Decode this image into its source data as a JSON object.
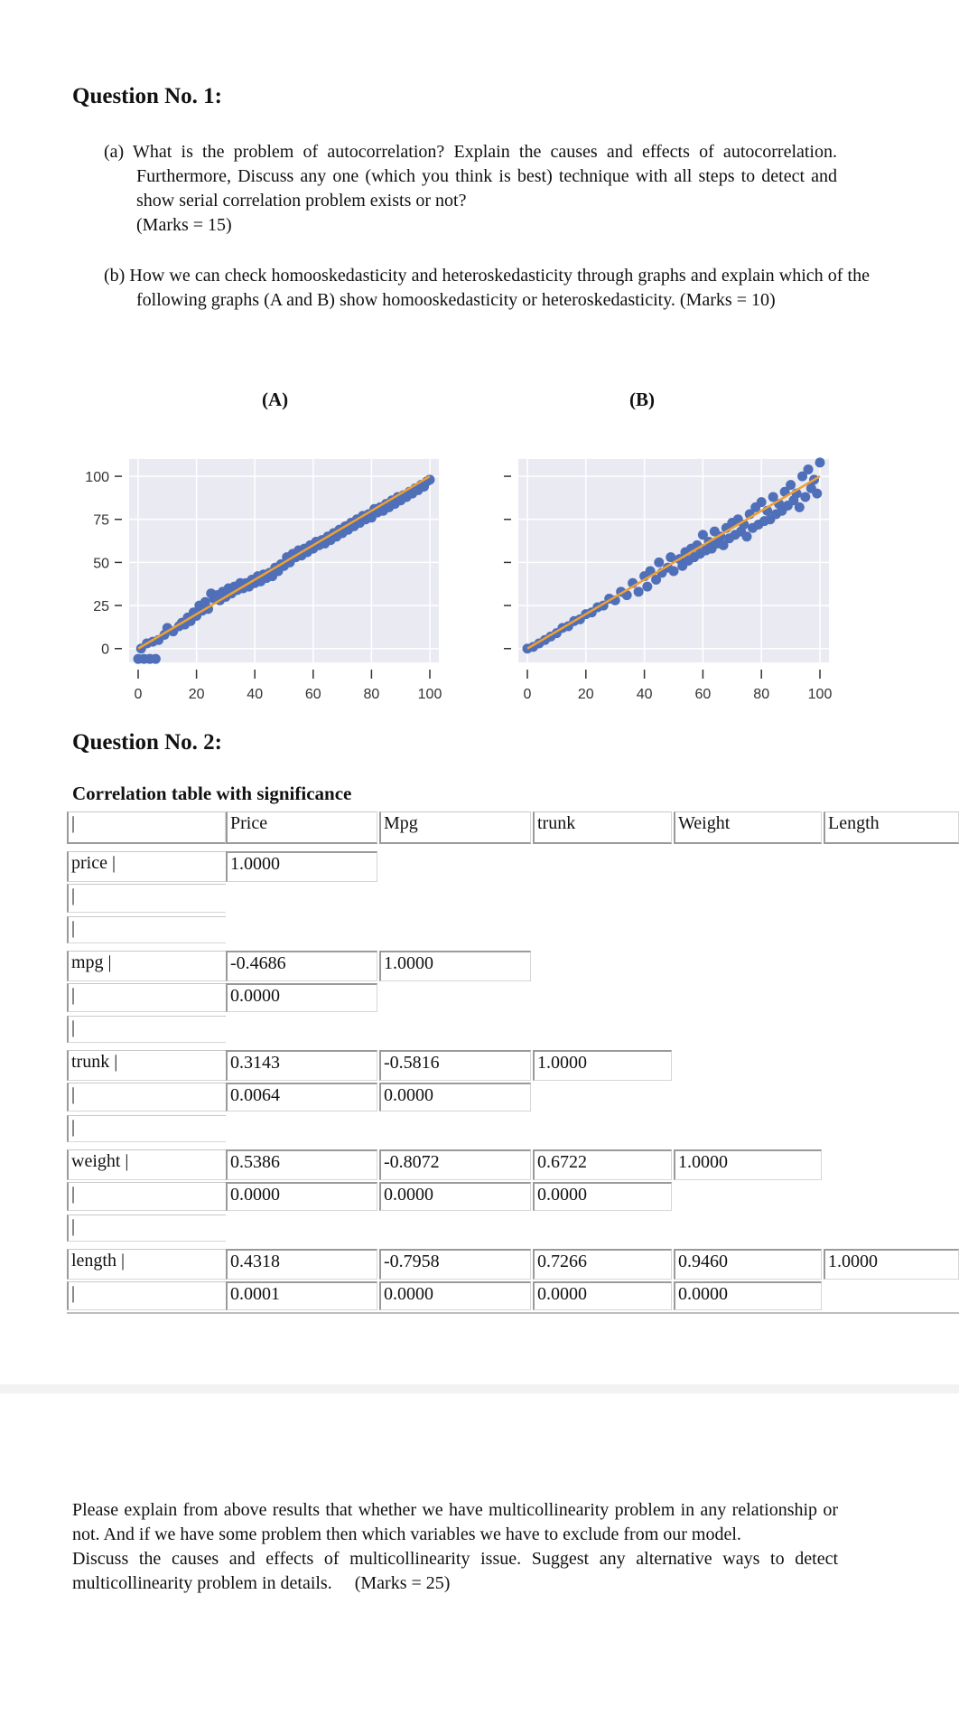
{
  "q1": {
    "title": "Question No. 1:",
    "a": "(a) What is the problem of autocorrelation? Explain the causes and effects of autocorrelation. Furthermore, Discuss any one (which you think is best) technique with all steps to detect and show serial correlation problem exists or not?",
    "a_marks": "(Marks = 15)",
    "b": "(b) How we can check homooskedasticity and heteroskedasticity through graphs and explain which of the following graphs (A and B) show homooskedasticity or heteroskedasticity. (Marks = 10)"
  },
  "chart_data": [
    {
      "type": "scatter",
      "label": "(A)",
      "xticks": [
        "0",
        "20",
        "40",
        "60",
        "80",
        "100"
      ],
      "yticks": [
        "100",
        "75",
        "50",
        "25",
        "0"
      ],
      "xlim": [
        0,
        100
      ],
      "ylim": [
        -8,
        110
      ],
      "fit_line": [
        [
          0,
          0
        ],
        [
          100,
          100
        ]
      ],
      "colors": {
        "points": "#4f6fb8",
        "line": "#f0a030",
        "background": "#eaeaf2"
      },
      "points": [
        [
          0,
          -6
        ],
        [
          2,
          -6
        ],
        [
          4,
          -6
        ],
        [
          6,
          -6
        ],
        [
          1,
          0
        ],
        [
          3,
          3
        ],
        [
          5,
          4
        ],
        [
          7,
          5
        ],
        [
          9,
          8
        ],
        [
          10,
          12
        ],
        [
          12,
          10
        ],
        [
          14,
          13
        ],
        [
          15,
          15
        ],
        [
          16,
          14
        ],
        [
          17,
          18
        ],
        [
          18,
          16
        ],
        [
          19,
          21
        ],
        [
          20,
          19
        ],
        [
          21,
          25
        ],
        [
          22,
          22
        ],
        [
          23,
          27
        ],
        [
          24,
          23
        ],
        [
          25,
          32
        ],
        [
          26,
          29
        ],
        [
          27,
          31
        ],
        [
          28,
          28
        ],
        [
          29,
          33
        ],
        [
          30,
          30
        ],
        [
          31,
          35
        ],
        [
          32,
          32
        ],
        [
          33,
          36
        ],
        [
          34,
          34
        ],
        [
          35,
          38
        ],
        [
          36,
          35
        ],
        [
          37,
          38
        ],
        [
          38,
          36
        ],
        [
          39,
          40
        ],
        [
          40,
          38
        ],
        [
          41,
          42
        ],
        [
          42,
          39
        ],
        [
          43,
          43
        ],
        [
          44,
          41
        ],
        [
          45,
          44
        ],
        [
          46,
          42
        ],
        [
          47,
          47
        ],
        [
          48,
          45
        ],
        [
          49,
          49
        ],
        [
          50,
          48
        ],
        [
          51,
          53
        ],
        [
          52,
          50
        ],
        [
          53,
          55
        ],
        [
          54,
          53
        ],
        [
          55,
          57
        ],
        [
          56,
          54
        ],
        [
          57,
          58
        ],
        [
          58,
          56
        ],
        [
          59,
          60
        ],
        [
          60,
          58
        ],
        [
          61,
          62
        ],
        [
          62,
          60
        ],
        [
          63,
          63
        ],
        [
          64,
          61
        ],
        [
          65,
          65
        ],
        [
          66,
          63
        ],
        [
          67,
          67
        ],
        [
          68,
          65
        ],
        [
          69,
          69
        ],
        [
          70,
          67
        ],
        [
          71,
          71
        ],
        [
          72,
          69
        ],
        [
          73,
          73
        ],
        [
          74,
          71
        ],
        [
          75,
          75
        ],
        [
          76,
          73
        ],
        [
          77,
          77
        ],
        [
          78,
          75
        ],
        [
          79,
          78
        ],
        [
          80,
          76
        ],
        [
          81,
          81
        ],
        [
          82,
          79
        ],
        [
          83,
          82
        ],
        [
          84,
          80
        ],
        [
          85,
          84
        ],
        [
          86,
          82
        ],
        [
          87,
          86
        ],
        [
          88,
          84
        ],
        [
          89,
          88
        ],
        [
          90,
          86
        ],
        [
          91,
          89
        ],
        [
          92,
          88
        ],
        [
          93,
          91
        ],
        [
          94,
          90
        ],
        [
          95,
          93
        ],
        [
          96,
          92
        ],
        [
          97,
          95
        ],
        [
          98,
          94
        ],
        [
          99,
          97
        ],
        [
          100,
          98
        ]
      ]
    },
    {
      "type": "scatter",
      "label": "(B)",
      "xticks": [
        "0",
        "20",
        "40",
        "60",
        "80",
        "100"
      ],
      "yticks": [],
      "xlim": [
        0,
        100
      ],
      "ylim": [
        -8,
        110
      ],
      "fit_line": [
        [
          0,
          0
        ],
        [
          100,
          100
        ]
      ],
      "colors": {
        "points": "#4f6fb8",
        "line": "#f0a030",
        "background": "#eaeaf2"
      },
      "points": [
        [
          0,
          0
        ],
        [
          2,
          1
        ],
        [
          4,
          3
        ],
        [
          6,
          5
        ],
        [
          8,
          7
        ],
        [
          10,
          9
        ],
        [
          12,
          12
        ],
        [
          14,
          13
        ],
        [
          16,
          16
        ],
        [
          18,
          17
        ],
        [
          20,
          20
        ],
        [
          22,
          21
        ],
        [
          24,
          24
        ],
        [
          26,
          25
        ],
        [
          28,
          29
        ],
        [
          30,
          28
        ],
        [
          32,
          33
        ],
        [
          34,
          31
        ],
        [
          36,
          38
        ],
        [
          38,
          33
        ],
        [
          40,
          42
        ],
        [
          41,
          36
        ],
        [
          42,
          45
        ],
        [
          44,
          40
        ],
        [
          45,
          50
        ],
        [
          46,
          44
        ],
        [
          48,
          47
        ],
        [
          49,
          53
        ],
        [
          50,
          45
        ],
        [
          52,
          52
        ],
        [
          53,
          48
        ],
        [
          54,
          56
        ],
        [
          55,
          51
        ],
        [
          56,
          58
        ],
        [
          57,
          53
        ],
        [
          58,
          60
        ],
        [
          59,
          55
        ],
        [
          60,
          66
        ],
        [
          61,
          57
        ],
        [
          62,
          62
        ],
        [
          63,
          58
        ],
        [
          64,
          68
        ],
        [
          65,
          61
        ],
        [
          66,
          65
        ],
        [
          67,
          60
        ],
        [
          68,
          70
        ],
        [
          69,
          64
        ],
        [
          70,
          73
        ],
        [
          71,
          66
        ],
        [
          72,
          75
        ],
        [
          73,
          68
        ],
        [
          74,
          72
        ],
        [
          75,
          65
        ],
        [
          76,
          78
        ],
        [
          77,
          70
        ],
        [
          78,
          82
        ],
        [
          79,
          72
        ],
        [
          80,
          85
        ],
        [
          81,
          74
        ],
        [
          82,
          80
        ],
        [
          83,
          75
        ],
        [
          84,
          88
        ],
        [
          85,
          78
        ],
        [
          86,
          84
        ],
        [
          87,
          80
        ],
        [
          88,
          91
        ],
        [
          89,
          83
        ],
        [
          90,
          95
        ],
        [
          91,
          86
        ],
        [
          92,
          90
        ],
        [
          93,
          82
        ],
        [
          94,
          100
        ],
        [
          95,
          88
        ],
        [
          96,
          104
        ],
        [
          97,
          93
        ],
        [
          98,
          98
        ],
        [
          99,
          90
        ],
        [
          100,
          108
        ]
      ]
    }
  ],
  "q2": {
    "title": "Question No. 2:",
    "table_title": "Correlation table with significance",
    "bar": "|",
    "headers": [
      "Price",
      "Mpg",
      "trunk",
      "Weight",
      "Length"
    ],
    "rows": [
      {
        "label": "price |",
        "coef": [
          "1.0000"
        ],
        "sig": []
      },
      {
        "label": "mpg |",
        "coef": [
          "-0.4686",
          "1.0000"
        ],
        "sig": [
          "0.0000"
        ]
      },
      {
        "label": "trunk |",
        "coef": [
          "0.3143",
          "-0.5816",
          "1.0000"
        ],
        "sig": [
          "0.0064",
          "0.0000"
        ]
      },
      {
        "label": "weight |",
        "coef": [
          "0.5386",
          "-0.8072",
          "0.6722",
          "1.0000"
        ],
        "sig": [
          "0.0000",
          "0.0000",
          "0.0000"
        ]
      },
      {
        "label": "length |",
        "coef": [
          "0.4318",
          "-0.7958",
          "0.7266",
          "0.9460",
          "1.0000"
        ],
        "sig": [
          "0.0001",
          "0.0000",
          "0.0000",
          "0.0000"
        ]
      }
    ],
    "para1": "Please explain from above results that whether we have multicollinearity problem in any relationship or not. And if we have some problem then which variables we have to exclude from our model.",
    "para2": "Discuss the causes and effects of multicollinearity issue. Suggest any alternative ways to detect multicollinearity problem in details.",
    "para2_marks": "(Marks = 25)"
  }
}
